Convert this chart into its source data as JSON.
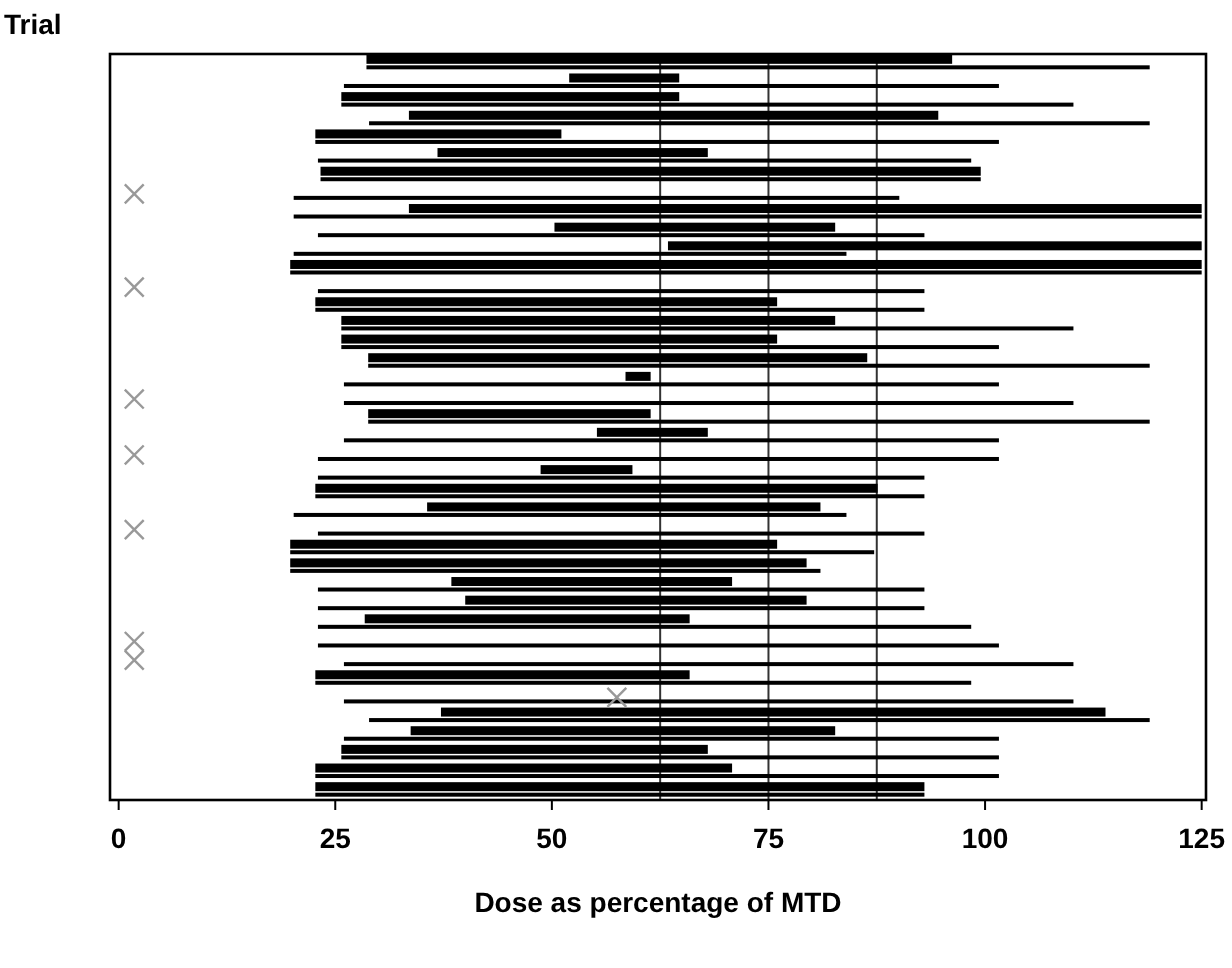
{
  "chart_data": {
    "type": "bar",
    "orientation": "horizontal",
    "ylabel": "Trial",
    "xlabel": "Dose as percentage of MTD",
    "categories": [
      null,
      null,
      null,
      null,
      null,
      null,
      null,
      null,
      null,
      null,
      null,
      null,
      null,
      null,
      null,
      null,
      null,
      null,
      null,
      null,
      null,
      null,
      null,
      null,
      null,
      null,
      null,
      null,
      null,
      null,
      null,
      null,
      null,
      null,
      null,
      null,
      null,
      null,
      null,
      null
    ],
    "xlim": [
      -1,
      125.5
    ],
    "xticks": [
      0,
      25,
      50,
      75,
      100,
      125
    ],
    "grid": false,
    "ref_lines": [
      {
        "axis": "x",
        "value": 62.5,
        "color": "#333333"
      },
      {
        "axis": "x",
        "value": 75,
        "color": "#333333"
      },
      {
        "axis": "x",
        "value": 87.5,
        "color": "#333333"
      }
    ],
    "series": [
      {
        "color": "#000000",
        "base": [
          28.6,
          52,
          25.7,
          33.5,
          22.7,
          36.8,
          23.3,
          null,
          33.5,
          50.3,
          63.4,
          19.8,
          null,
          22.7,
          25.7,
          25.7,
          28.8,
          58.5,
          null,
          28.8,
          55.2,
          null,
          48.7,
          22.7,
          35.6,
          null,
          19.8,
          19.8,
          38.4,
          40,
          28.4,
          null,
          null,
          22.7,
          null,
          37.2,
          33.7,
          25.7,
          22.7,
          22.7
        ],
        "values": [
          67.6,
          12.7,
          39,
          61.1,
          28.4,
          31.2,
          76.2,
          null,
          91.5,
          32.4,
          61.6,
          105.2,
          null,
          53.3,
          57,
          50.3,
          57.6,
          2.9,
          null,
          32.6,
          12.8,
          null,
          10.6,
          64.9,
          45.4,
          null,
          56.2,
          59.6,
          32.4,
          39.4,
          37.5,
          null,
          null,
          43.2,
          null,
          76.7,
          49,
          42.3,
          48.1,
          70.3
        ]
      },
      {
        "color": "#000000",
        "base": [
          28.6,
          26,
          25.7,
          28.9,
          22.7,
          23,
          23.3,
          20.2,
          20.2,
          23,
          20.2,
          19.8,
          23,
          22.7,
          25.7,
          25.7,
          28.8,
          26,
          26,
          28.8,
          26,
          23,
          23,
          22.7,
          20.2,
          23,
          19.8,
          19.8,
          23,
          23,
          23,
          23,
          26,
          22.7,
          26,
          28.9,
          26,
          25.7,
          22.7,
          22.7
        ],
        "values": [
          90.4,
          75.6,
          84.5,
          90.1,
          78.9,
          75.4,
          76.2,
          69.9,
          104.8,
          70,
          63.8,
          105.2,
          70,
          70.3,
          84.5,
          75.9,
          90.2,
          75.6,
          84.2,
          90.2,
          75.6,
          78.6,
          70,
          70.3,
          63.8,
          70,
          67.4,
          61.2,
          70,
          70,
          75.4,
          78.6,
          84.2,
          75.7,
          84.2,
          90.1,
          75.6,
          75.9,
          78.9,
          70.3
        ]
      },
      {
        "type": "scatter",
        "marker": "cross",
        "color": "#999999",
        "values": [
          null,
          null,
          null,
          null,
          null,
          null,
          null,
          1.8,
          null,
          null,
          null,
          null,
          1.8,
          null,
          null,
          null,
          null,
          null,
          1.8,
          null,
          null,
          1.8,
          null,
          null,
          null,
          1.8,
          null,
          null,
          null,
          null,
          null,
          1.8,
          1.8,
          null,
          57.5,
          null,
          null,
          null,
          null,
          null
        ]
      }
    ]
  }
}
